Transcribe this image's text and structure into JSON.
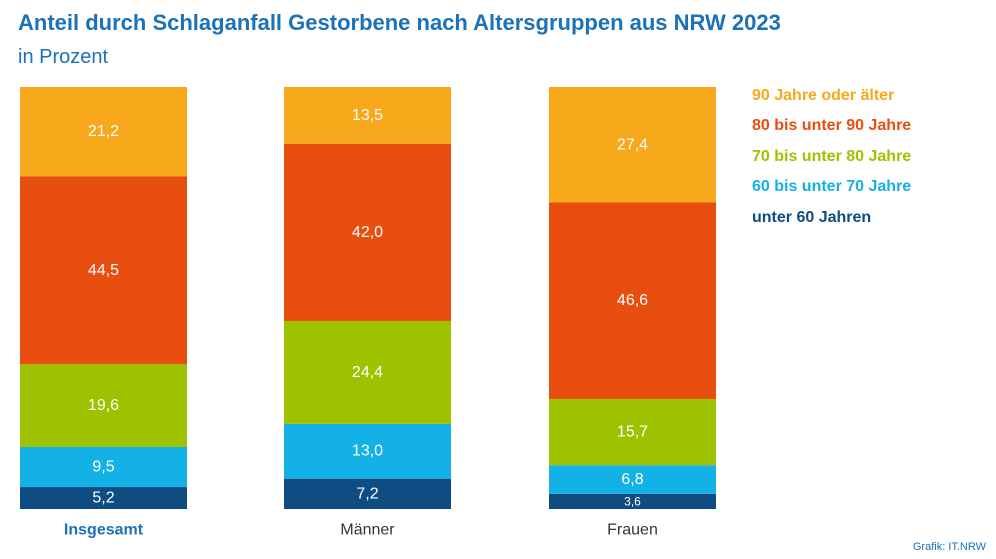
{
  "title": "Anteil durch Schlaganfall Gestorbene nach Altersgruppen aus NRW 2023",
  "subtitle": "in Prozent",
  "source": "Grafik: IT.NRW",
  "colors": {
    "90+": "#f7a81b",
    "80-90": "#e84e0f",
    "70-80": "#9fc200",
    "60-70": "#14b1e7",
    "u60": "#0f4c81",
    "title": "#1b72b8"
  },
  "legend": [
    {
      "label": "90 Jahre oder älter",
      "color": "#f7a81b"
    },
    {
      "label": "80 bis unter 90 Jahre",
      "color": "#e84e0f"
    },
    {
      "label": "70 bis unter 80 Jahre",
      "color": "#9fc200"
    },
    {
      "label": "60 bis unter 70 Jahre",
      "color": "#14b1e7"
    },
    {
      "label": "unter 60 Jahren",
      "color": "#0f4c81"
    }
  ],
  "chart_data": {
    "type": "bar",
    "stacked": true,
    "percent": true,
    "categories": [
      "Insgesamt",
      "Männer",
      "Frauen"
    ],
    "category_bold": [
      true,
      false,
      false
    ],
    "category_colors": [
      "#1b72b8",
      "#333333",
      "#333333"
    ],
    "series": [
      {
        "name": "unter 60 Jahren",
        "color": "#0f4c81",
        "labels": [
          "5,2",
          "7,2",
          "3,6"
        ],
        "values": [
          5.2,
          7.2,
          3.6
        ]
      },
      {
        "name": "60 bis unter 70 Jahre",
        "color": "#14b1e7",
        "labels": [
          "9,5",
          "13,0",
          "6,8"
        ],
        "values": [
          9.5,
          13.0,
          6.8
        ]
      },
      {
        "name": "70 bis unter 80 Jahre",
        "color": "#9fc200",
        "labels": [
          "19,6",
          "24,4",
          "15,7"
        ],
        "values": [
          19.6,
          24.4,
          15.7
        ]
      },
      {
        "name": "80 bis unter 90 Jahre",
        "color": "#e84e0f",
        "labels": [
          "44,5",
          "42,0",
          "46,6"
        ],
        "values": [
          44.5,
          42.0,
          46.6
        ]
      },
      {
        "name": "90 Jahre oder älter",
        "color": "#f7a81b",
        "labels": [
          "21,2",
          "13,5",
          "27,4"
        ],
        "values": [
          21.2,
          13.5,
          27.4
        ]
      }
    ],
    "ylim": [
      0,
      100
    ],
    "legend_position": "right"
  }
}
